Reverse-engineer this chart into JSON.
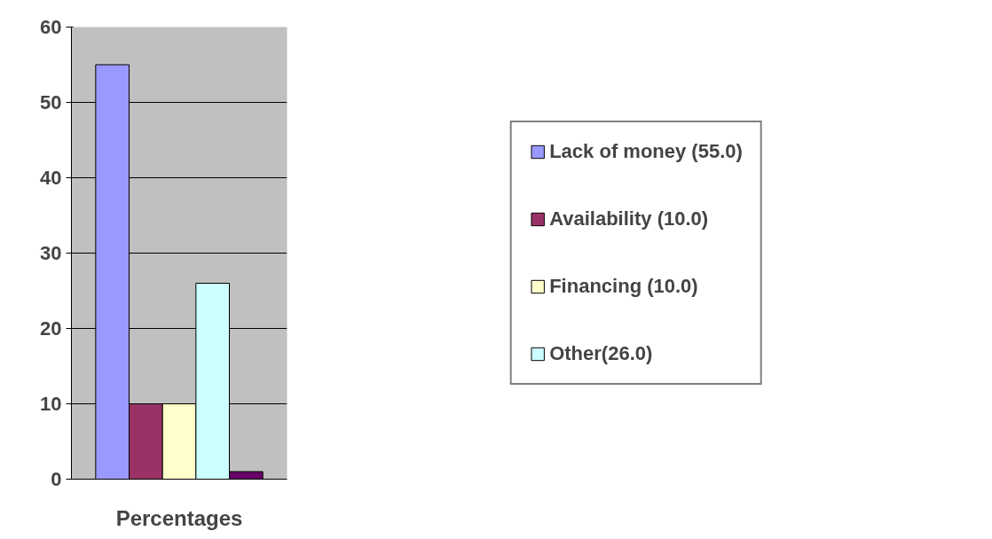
{
  "chart_data": {
    "type": "bar",
    "xlabel": "Percentages",
    "categories": [
      null
    ],
    "series": [
      {
        "name": "Lack of money (55.0)",
        "color": "#9999ff",
        "values": [
          55
        ]
      },
      {
        "name": "Availability (10.0)",
        "color": "#993366",
        "values": [
          10
        ]
      },
      {
        "name": "Financing (10.0)",
        "color": "#ffffcc",
        "values": [
          10
        ]
      },
      {
        "name": "Other(26.0)",
        "color": "#ccffff",
        "values": [
          26
        ]
      },
      {
        "color": "#660066",
        "values": [
          1
        ]
      }
    ],
    "ylim": [
      0,
      60
    ],
    "yticks": [
      0,
      10,
      20,
      30,
      40,
      50,
      60
    ],
    "grid": "y",
    "legend": "right"
  }
}
